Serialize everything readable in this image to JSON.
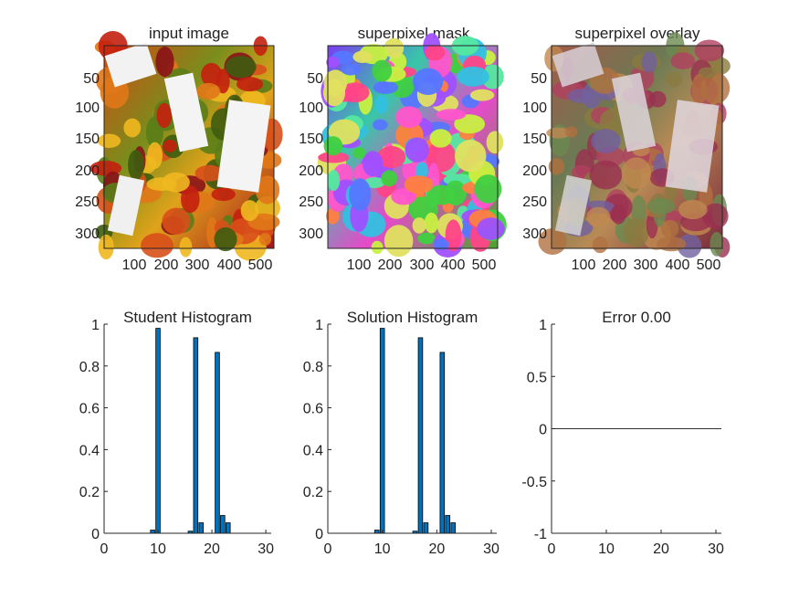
{
  "figure": {
    "background": "#ffffff",
    "axis_color": "#262626",
    "bar_color": "#0072BD",
    "bar_edge": "#000000"
  },
  "panels": {
    "input": {
      "title": "input image",
      "yticks": [
        "50",
        "100",
        "150",
        "200",
        "250",
        "300"
      ],
      "xticks": [
        "100",
        "200",
        "300",
        "400",
        "500"
      ]
    },
    "mask": {
      "title": "superpixel mask",
      "yticks": [
        "50",
        "100",
        "150",
        "200",
        "250",
        "300"
      ],
      "xticks": [
        "100",
        "200",
        "300",
        "400",
        "500"
      ]
    },
    "overlay": {
      "title": "superpixel overlay",
      "yticks": [
        "50",
        "100",
        "150",
        "200",
        "250",
        "300"
      ],
      "xticks": [
        "100",
        "200",
        "300",
        "400",
        "500"
      ]
    }
  },
  "chart_data": [
    {
      "type": "bar",
      "title": "Student Histogram",
      "xlim": [
        0,
        31
      ],
      "ylim": [
        0,
        1
      ],
      "xticks": [
        0,
        10,
        20,
        30
      ],
      "yticks": [
        0,
        0.2,
        0.4,
        0.6,
        0.8,
        1
      ],
      "ytick_labels": [
        "0",
        "0.2",
        "0.4",
        "0.6",
        "0.8",
        "1"
      ],
      "x": [
        9,
        10,
        16,
        17,
        18,
        21,
        22,
        23
      ],
      "values": [
        0.015,
        0.98,
        0.01,
        0.935,
        0.05,
        0.865,
        0.085,
        0.05
      ]
    },
    {
      "type": "bar",
      "title": "Solution Histogram",
      "xlim": [
        0,
        31
      ],
      "ylim": [
        0,
        1
      ],
      "xticks": [
        0,
        10,
        20,
        30
      ],
      "yticks": [
        0,
        0.2,
        0.4,
        0.6,
        0.8,
        1
      ],
      "ytick_labels": [
        "0",
        "0.2",
        "0.4",
        "0.6",
        "0.8",
        "1"
      ],
      "x": [
        9,
        10,
        16,
        17,
        18,
        21,
        22,
        23
      ],
      "values": [
        0.015,
        0.98,
        0.01,
        0.935,
        0.05,
        0.865,
        0.085,
        0.05
      ]
    },
    {
      "type": "line",
      "title": "Error 0.00",
      "xlim": [
        0,
        31
      ],
      "ylim": [
        -1,
        1
      ],
      "xticks": [
        0,
        10,
        20,
        30
      ],
      "yticks": [
        -1,
        -0.5,
        0,
        0.5,
        1
      ],
      "ytick_labels": [
        "-1",
        "-0.5",
        "0",
        "0.5",
        "1"
      ],
      "x": [
        0,
        31
      ],
      "values": [
        0,
        0
      ]
    }
  ]
}
